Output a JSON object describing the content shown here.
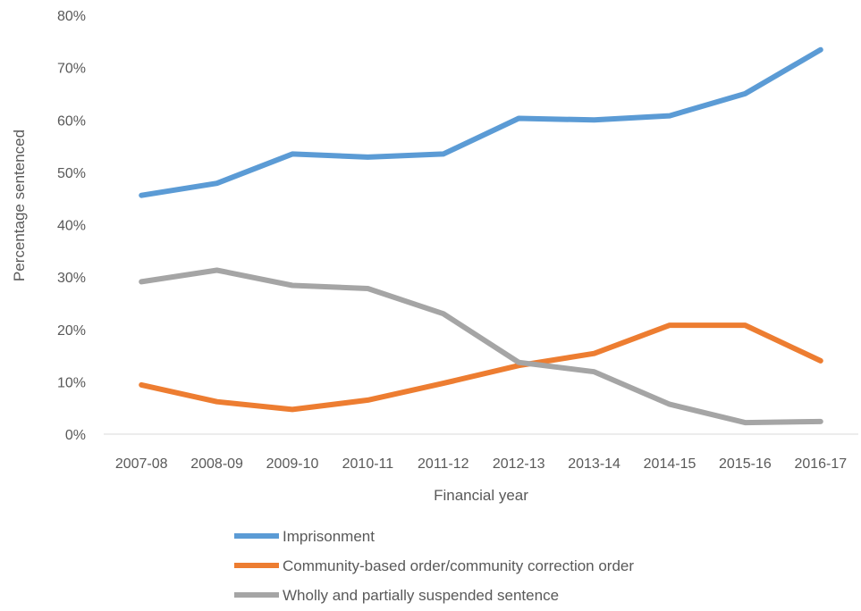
{
  "chart_data": {
    "type": "line",
    "title": "",
    "xlabel": "Financial year",
    "ylabel": "Percentage sentenced",
    "ylim": [
      0,
      80
    ],
    "y_tick_step": 10,
    "y_tick_suffix": "%",
    "grid": false,
    "legend_position": "bottom",
    "categories": [
      "2007-08",
      "2008-09",
      "2009-10",
      "2010-11",
      "2011-12",
      "2012-13",
      "2013-14",
      "2014-15",
      "2015-16",
      "2016-17"
    ],
    "series": [
      {
        "name": "Imprisonment",
        "color": "#5B9BD5",
        "values": [
          45.6,
          47.9,
          53.5,
          52.9,
          53.5,
          60.3,
          60.0,
          60.8,
          65.0,
          73.4
        ]
      },
      {
        "name": "Community-based order/community correction order",
        "color": "#ED7D31",
        "values": [
          9.4,
          6.2,
          4.7,
          6.5,
          9.7,
          13.1,
          15.4,
          20.8,
          20.8,
          14.0
        ]
      },
      {
        "name": "Wholly and partially suspended sentence",
        "color": "#A5A5A5",
        "values": [
          29.1,
          31.3,
          28.4,
          27.8,
          23.0,
          13.7,
          11.9,
          5.7,
          2.2,
          2.4
        ]
      }
    ]
  }
}
